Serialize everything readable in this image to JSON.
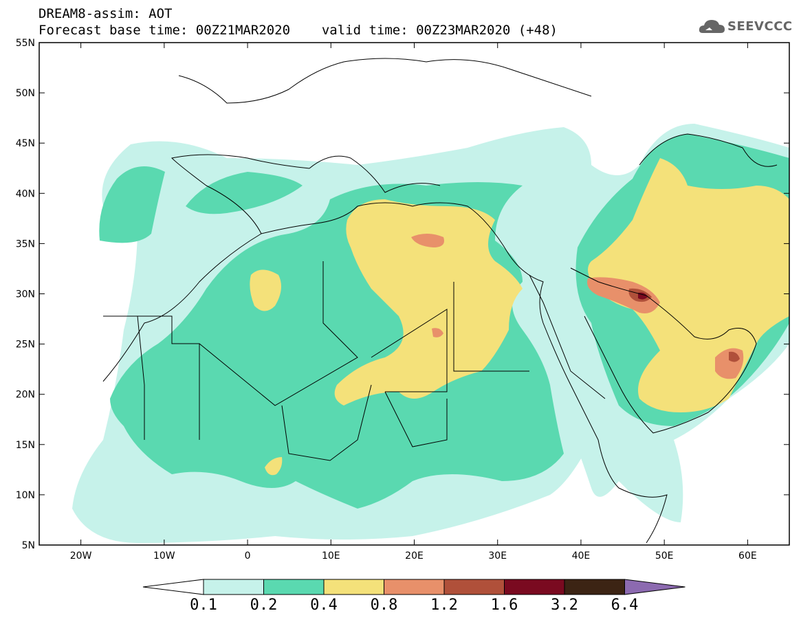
{
  "header": {
    "model_line": "DREAM8-assim: AOT",
    "base_time_line": "Forecast base time: 00Z21MAR2020",
    "valid_time_line": "valid time: 00Z23MAR2020 (+48)",
    "logo_text": "SEEVCCC"
  },
  "axes": {
    "lat_labels": [
      "55N",
      "50N",
      "45N",
      "40N",
      "35N",
      "30N",
      "25N",
      "20N",
      "15N",
      "10N",
      "5N"
    ],
    "lat_values": [
      55,
      50,
      45,
      40,
      35,
      30,
      25,
      20,
      15,
      10,
      5
    ],
    "lon_labels": [
      "20W",
      "10W",
      "0",
      "10E",
      "20E",
      "30E",
      "40E",
      "50E",
      "60E"
    ],
    "lon_values": [
      -20,
      -10,
      0,
      10,
      20,
      30,
      40,
      50,
      60
    ],
    "lon_range": [
      -25,
      65
    ],
    "lat_range": [
      5,
      55
    ]
  },
  "legend": {
    "labels": [
      "0.1",
      "0.2",
      "0.4",
      "0.8",
      "1.2",
      "1.6",
      "3.2",
      "6.4"
    ],
    "colors": [
      "#c6f2ea",
      "#5ad9b0",
      "#f4e17a",
      "#e8906a",
      "#b0503a",
      "#7a0a20",
      "#3c2414",
      "#8c6ab0"
    ]
  },
  "colors": {
    "aot_0_1": "#c6f2ea",
    "aot_0_2": "#5ad9b0",
    "aot_0_4": "#f4e17a",
    "aot_0_8": "#e8906a",
    "aot_1_2": "#b0503a",
    "aot_1_6": "#7a0a20",
    "aot_3_2": "#3c2414",
    "aot_6_4": "#8c6ab0"
  }
}
